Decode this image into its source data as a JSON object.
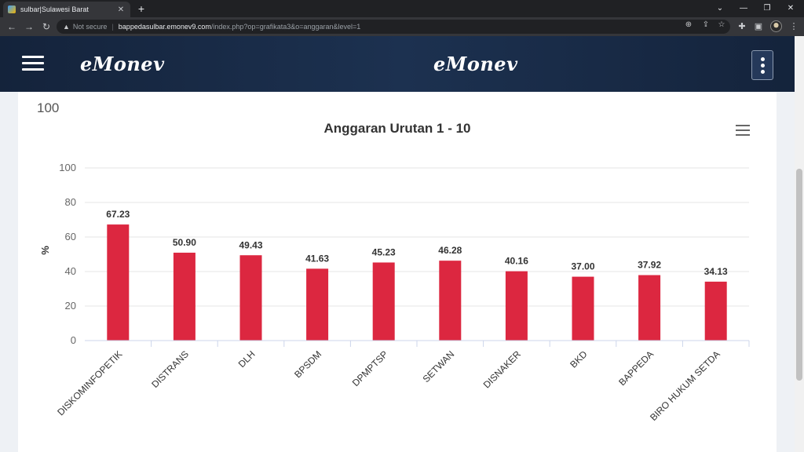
{
  "browser": {
    "tab_title": "sulbar|Sulawesi Barat",
    "new_tab": "+",
    "security_label": "Not secure",
    "url_host": "bappedasulbar.emonev9.com",
    "url_path": "/index.php?op=grafikata3&o=anggaran&level=1"
  },
  "header": {
    "logo_left": "eMonev",
    "logo_center": "eMonev"
  },
  "card": {
    "label": "100"
  },
  "chart_data": {
    "type": "bar",
    "title": "Anggaran Urutan 1 - 10",
    "ylabel": "%",
    "xlabel": "",
    "ylim": [
      0,
      100
    ],
    "yticks": [
      0,
      20,
      40,
      60,
      80,
      100
    ],
    "grid": true,
    "legend": "none",
    "bar_color": "#dc2740",
    "categories": [
      "DISKOMINFOPETIK",
      "DISTRANS",
      "DLH",
      "BPSDM",
      "DPMPTSP",
      "SETWAN",
      "DISNAKER",
      "BKD",
      "BAPPEDA",
      "BIRO HUKUM SETDA"
    ],
    "values": [
      67.23,
      50.9,
      49.43,
      41.63,
      45.23,
      46.28,
      40.16,
      37.0,
      37.92,
      34.13
    ],
    "data_labels": [
      "67.23",
      "50.90",
      "49.43",
      "41.63",
      "45.23",
      "46.28",
      "40.16",
      "37.00",
      "37.92",
      "34.13"
    ]
  }
}
